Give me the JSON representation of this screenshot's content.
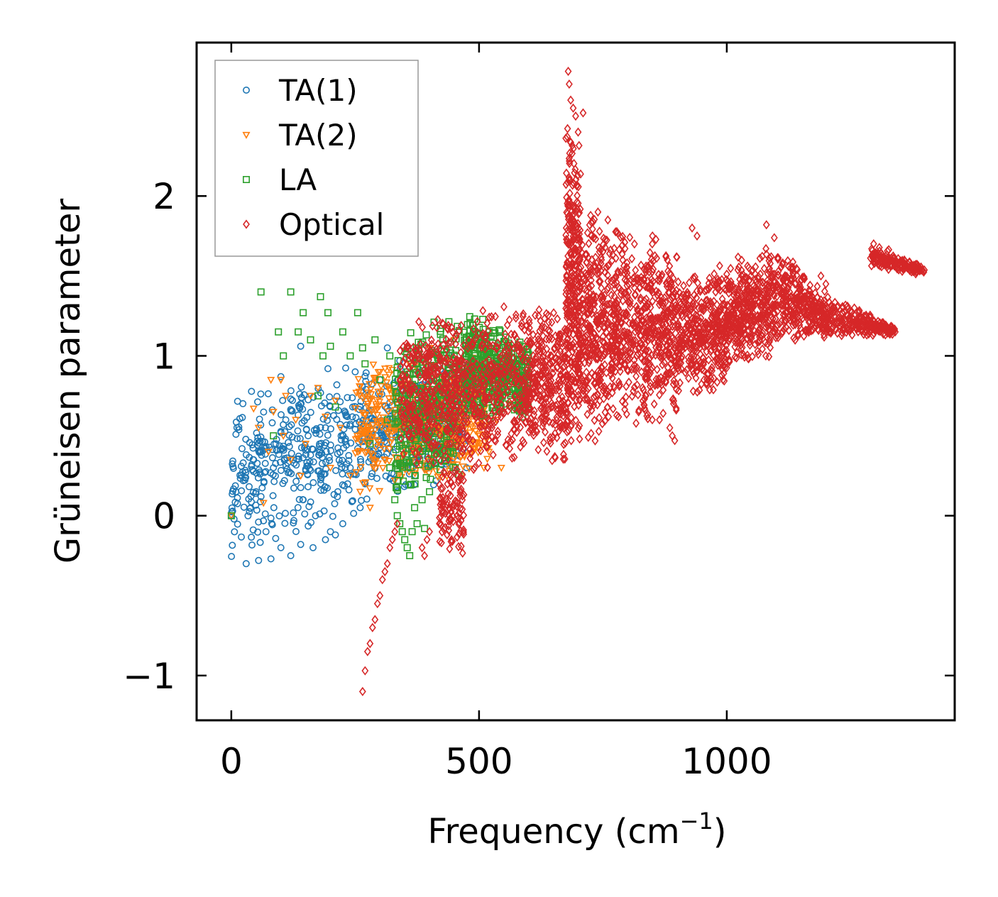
{
  "chart_data": {
    "type": "scatter",
    "title": "",
    "xlabel": "Frequency (cm",
    "xlabel_sup": "−1",
    "xlabel_end": ")",
    "ylabel": "Grüneisen parameter",
    "xlim": [
      -70,
      1460
    ],
    "ylim": [
      -1.28,
      2.96
    ],
    "xticks": [
      0,
      500,
      1000
    ],
    "xtick_labels": [
      "0",
      "500",
      "1000"
    ],
    "yticks": [
      -1,
      0,
      1,
      2
    ],
    "ytick_labels": [
      "−1",
      "0",
      "1",
      "2"
    ],
    "grid": false,
    "legend_position": "top-left",
    "series": [
      {
        "name": "TA(1)",
        "marker": "circle",
        "color": "#1f77b4",
        "regions": [
          {
            "x": [
              0,
              480
            ],
            "y_low": [
              -0.3,
              0.25
            ],
            "y_high": [
              0.85,
              1.05
            ],
            "count": 700
          }
        ],
        "points": [
          [
            0,
            0
          ],
          [
            30,
            -0.3
          ],
          [
            55,
            -0.28
          ],
          [
            80,
            -0.27
          ],
          [
            100,
            -0.2
          ],
          [
            120,
            -0.25
          ],
          [
            140,
            -0.18
          ],
          [
            165,
            -0.2
          ],
          [
            190,
            -0.15
          ],
          [
            210,
            -0.12
          ],
          [
            45,
            0.35
          ],
          [
            50,
            0.15
          ],
          [
            60,
            0.12
          ],
          [
            70,
            -0.1
          ],
          [
            85,
            0.3
          ],
          [
            90,
            0.45
          ],
          [
            100,
            0.52
          ],
          [
            110,
            0.6
          ],
          [
            120,
            0.73
          ],
          [
            125,
            0.35
          ],
          [
            135,
            0.63
          ],
          [
            145,
            0.1
          ],
          [
            155,
            0.5
          ],
          [
            160,
            0.38
          ],
          [
            170,
            0.0
          ],
          [
            180,
            0.25
          ],
          [
            190,
            0.55
          ],
          [
            195,
            0.92
          ],
          [
            200,
            -0.1
          ],
          [
            215,
            0.15
          ],
          [
            225,
            -0.05
          ],
          [
            240,
            0.3
          ],
          [
            245,
            0.68
          ],
          [
            250,
            0.9
          ],
          [
            255,
            0.42
          ],
          [
            260,
            0.05
          ],
          [
            270,
            0.2
          ],
          [
            275,
            0.75
          ],
          [
            290,
            0.6
          ],
          [
            300,
            0.85
          ],
          [
            315,
            1.05
          ],
          [
            320,
            0.55
          ],
          [
            340,
            0.97
          ],
          [
            360,
            0.65
          ],
          [
            380,
            0.9
          ],
          [
            400,
            0.6
          ],
          [
            420,
            0.95
          ],
          [
            440,
            0.55
          ],
          [
            460,
            0.5
          ],
          [
            475,
            0.3
          ],
          [
            140,
            1.06
          ],
          [
            100,
            0.87
          ]
        ]
      },
      {
        "name": "TA(2)",
        "marker": "triangle-down",
        "color": "#ff7f0e",
        "regions": [
          {
            "x": [
              250,
              520
            ],
            "y_low": [
              0.1,
              0.25
            ],
            "y_high": [
              0.95,
              1.05
            ],
            "count": 500
          }
        ],
        "points": [
          [
            0,
            0
          ],
          [
            45,
            0.67
          ],
          [
            55,
            0.55
          ],
          [
            65,
            0.08
          ],
          [
            75,
            0.4
          ],
          [
            80,
            0.85
          ],
          [
            85,
            0.65
          ],
          [
            100,
            0.85
          ],
          [
            105,
            0.5
          ],
          [
            110,
            0.75
          ],
          [
            120,
            0.35
          ],
          [
            130,
            0.6
          ],
          [
            140,
            0.25
          ],
          [
            150,
            0.45
          ],
          [
            160,
            0.75
          ],
          [
            175,
            0.8
          ],
          [
            190,
            0.62
          ],
          [
            200,
            0.3
          ],
          [
            210,
            0.72
          ],
          [
            220,
            0.55
          ],
          [
            240,
            0.25
          ],
          [
            260,
            0.15
          ],
          [
            280,
            0.05
          ],
          [
            300,
            0.9
          ],
          [
            330,
            0.22
          ],
          [
            360,
            0.95
          ],
          [
            400,
            1.05
          ],
          [
            450,
            1.1
          ],
          [
            470,
            0.7
          ],
          [
            490,
            0.65
          ],
          [
            500,
            0.5
          ],
          [
            510,
            0.3
          ],
          [
            520,
            0.4
          ],
          [
            545,
            0.3
          ],
          [
            550,
            0.85
          ],
          [
            560,
            0.7
          ],
          [
            535,
            0.6
          ]
        ]
      },
      {
        "name": "LA",
        "marker": "square",
        "color": "#2ca02c",
        "regions": [
          {
            "x": [
              330,
              460
            ],
            "y_low": [
              0.05,
              0.2
            ],
            "y_high": [
              1.2,
              1.3
            ],
            "count": 350
          },
          {
            "x": [
              470,
              600
            ],
            "y_low": [
              0.55,
              0.6
            ],
            "y_high": [
              1.3,
              1.1
            ],
            "count": 450
          }
        ],
        "points": [
          [
            0,
            0
          ],
          [
            60,
            1.4
          ],
          [
            85,
            0.5
          ],
          [
            95,
            1.15
          ],
          [
            105,
            1.0
          ],
          [
            120,
            1.4
          ],
          [
            135,
            1.15
          ],
          [
            145,
            1.27
          ],
          [
            160,
            1.1
          ],
          [
            175,
            0.75
          ],
          [
            180,
            1.37
          ],
          [
            185,
            1.0
          ],
          [
            195,
            1.27
          ],
          [
            200,
            1.06
          ],
          [
            210,
            0.68
          ],
          [
            225,
            1.15
          ],
          [
            240,
            1.0
          ],
          [
            255,
            1.27
          ],
          [
            265,
            1.05
          ],
          [
            270,
            0.95
          ],
          [
            280,
            0.45
          ],
          [
            290,
            1.1
          ],
          [
            300,
            0.85
          ],
          [
            315,
            0.6
          ],
          [
            320,
            1.0
          ],
          [
            320,
            0.3
          ],
          [
            330,
            0.1
          ],
          [
            335,
            0.0
          ],
          [
            340,
            -0.05
          ],
          [
            345,
            -0.1
          ],
          [
            350,
            -0.15
          ],
          [
            355,
            -0.2
          ],
          [
            360,
            -0.25
          ],
          [
            365,
            -0.1
          ],
          [
            370,
            0.05
          ],
          [
            375,
            -0.05
          ],
          [
            385,
            0.1
          ],
          [
            390,
            -0.08
          ],
          [
            400,
            0.15
          ]
        ]
      },
      {
        "name": "Optical",
        "marker": "diamond",
        "color": "#d62728",
        "regions": [
          {
            "x": [
              340,
              600
            ],
            "y_low": [
              0.25,
              0.3
            ],
            "y_high": [
              1.25,
              1.35
            ],
            "count": 700
          },
          {
            "x": [
              420,
              470
            ],
            "y_low": [
              -0.25,
              -0.25
            ],
            "y_high": [
              0.35,
              0.35
            ],
            "count": 100
          },
          {
            "x": [
              600,
              680
            ],
            "y_low": [
              0.4,
              0.2
            ],
            "y_high": [
              1.3,
              1.4
            ],
            "count": 300
          },
          {
            "x": [
              675,
              705
            ],
            "y_low": [
              0.3,
              0.35
            ],
            "y_high": [
              2.6,
              2.5
            ],
            "count": 300
          },
          {
            "x": [
              700,
              780
            ],
            "y_low": [
              0.4,
              0.45
            ],
            "y_high": [
              2.0,
              1.9
            ],
            "count": 400
          },
          {
            "x": [
              780,
              900
            ],
            "y_low": [
              0.5,
              0.6
            ],
            "y_high": [
              1.85,
              1.7
            ],
            "count": 500
          },
          {
            "x": [
              900,
              1000
            ],
            "y_low": [
              0.75,
              0.75
            ],
            "y_high": [
              1.5,
              1.6
            ],
            "count": 400
          },
          {
            "x": [
              1000,
              1100
            ],
            "y_low": [
              0.9,
              0.95
            ],
            "y_high": [
              1.6,
              1.75
            ],
            "count": 400
          },
          {
            "x": [
              1100,
              1200
            ],
            "y_low": [
              1.05,
              1.1
            ],
            "y_high": [
              1.75,
              1.4
            ],
            "count": 300
          },
          {
            "x": [
              1200,
              1340
            ],
            "y_low": [
              1.1,
              1.13
            ],
            "y_high": [
              1.4,
              1.18
            ],
            "count": 250
          },
          {
            "x": [
              1290,
              1400
            ],
            "y_low": [
              1.55,
              1.5
            ],
            "y_high": [
              1.72,
              1.56
            ],
            "count": 150
          }
        ],
        "points": [
          [
            265,
            -1.1
          ],
          [
            270,
            -0.97
          ],
          [
            275,
            -0.85
          ],
          [
            280,
            -0.8
          ],
          [
            285,
            -0.7
          ],
          [
            290,
            -0.65
          ],
          [
            295,
            -0.55
          ],
          [
            300,
            -0.5
          ],
          [
            305,
            -0.4
          ],
          [
            310,
            -0.35
          ],
          [
            315,
            -0.3
          ],
          [
            320,
            -0.2
          ],
          [
            325,
            -0.15
          ],
          [
            330,
            -0.1
          ],
          [
            335,
            -0.05
          ],
          [
            385,
            -0.2
          ],
          [
            390,
            -0.25
          ],
          [
            395,
            -0.15
          ],
          [
            400,
            -0.1
          ],
          [
            420,
            -0.05
          ],
          [
            680,
            2.78
          ],
          [
            682,
            2.7
          ],
          [
            685,
            2.6
          ],
          [
            690,
            2.55
          ],
          [
            695,
            2.5
          ],
          [
            700,
            2.4
          ],
          [
            710,
            2.52
          ],
          [
            740,
            1.9
          ],
          [
            760,
            1.85
          ],
          [
            790,
            1.6
          ],
          [
            850,
            1.75
          ],
          [
            880,
            1.6
          ],
          [
            930,
            1.8
          ],
          [
            940,
            1.75
          ],
          [
            1080,
            1.82
          ],
          [
            1190,
            1.5
          ],
          [
            1200,
            1.45
          ],
          [
            1340,
            1.15
          ],
          [
            890,
            0.5
          ],
          [
            895,
            0.47
          ],
          [
            885,
            0.55
          ]
        ]
      }
    ]
  }
}
